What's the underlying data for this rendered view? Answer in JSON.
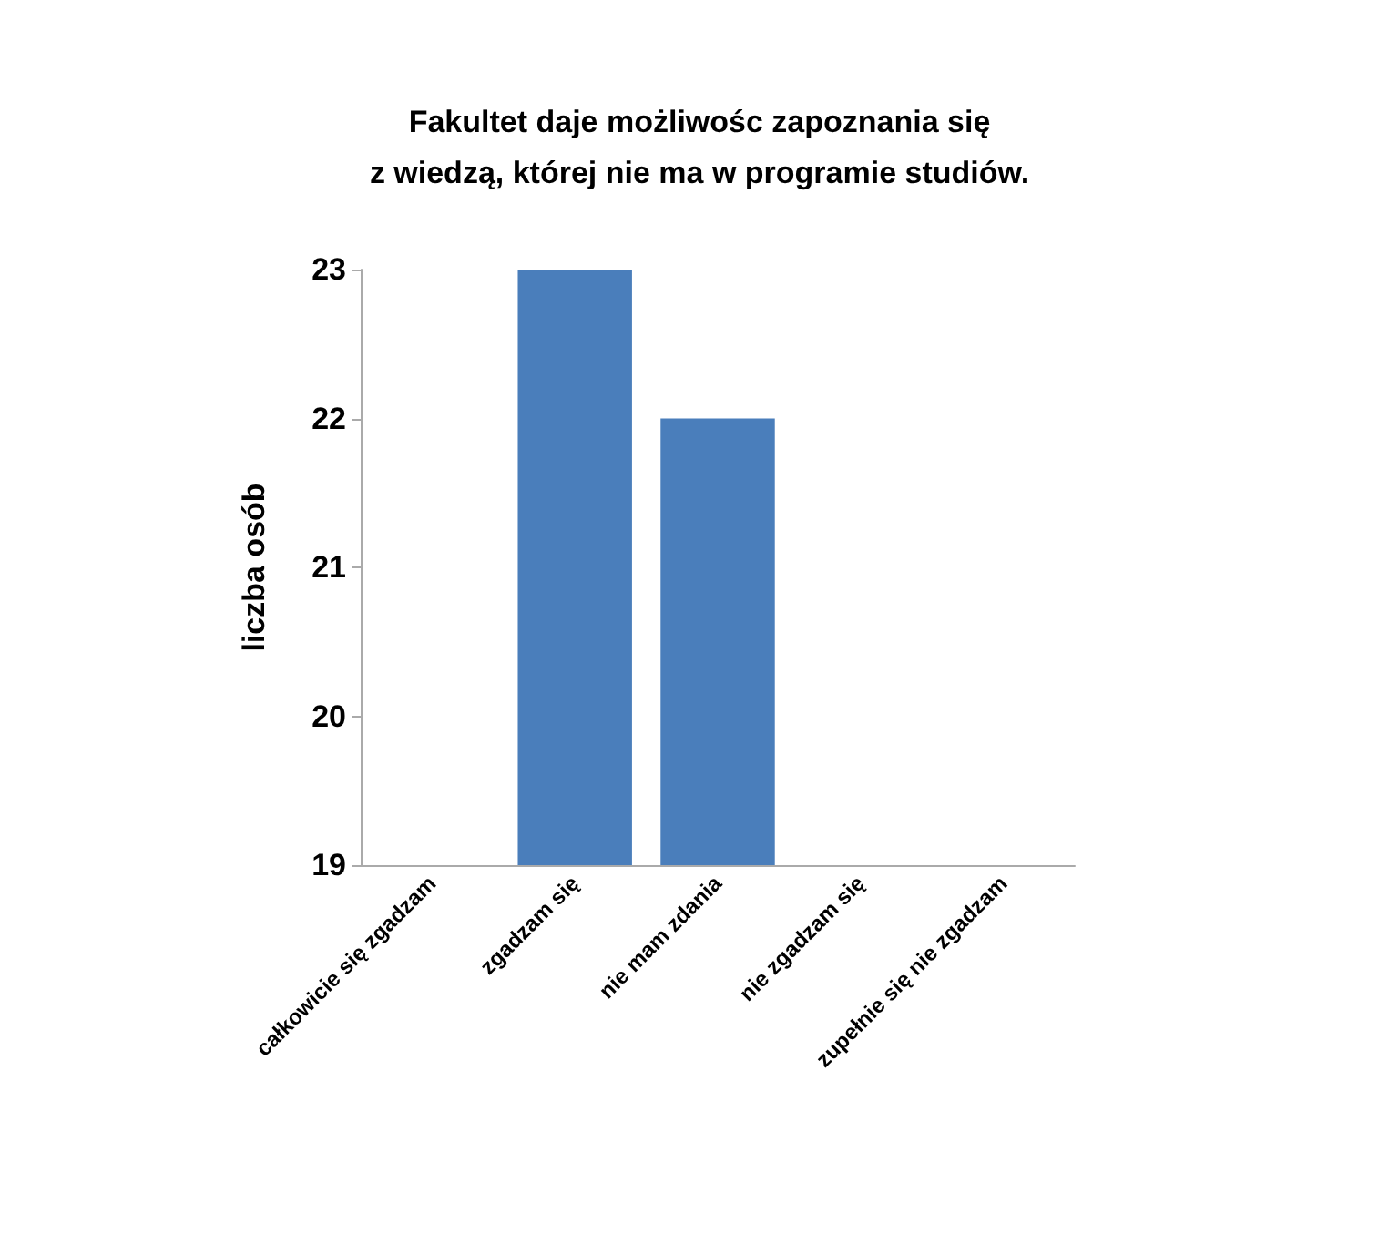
{
  "chart_data": {
    "type": "bar",
    "title": "Fakultet daje możliwośc zapoznania się\nz wiedzą, której nie ma w programie studiów.",
    "ylabel": "liczba osób",
    "categories": [
      "całkowicie się zgadzam",
      "zgadzam się",
      "nie mam zdania",
      "nie zgadzam się",
      "zupełnie się nie zgadzam"
    ],
    "values": [
      null,
      23,
      22,
      null,
      null
    ],
    "color": "#4a7ebb",
    "ylim": [
      19,
      23
    ],
    "yticks": [
      19,
      20,
      21,
      22,
      23
    ],
    "grid": false
  }
}
